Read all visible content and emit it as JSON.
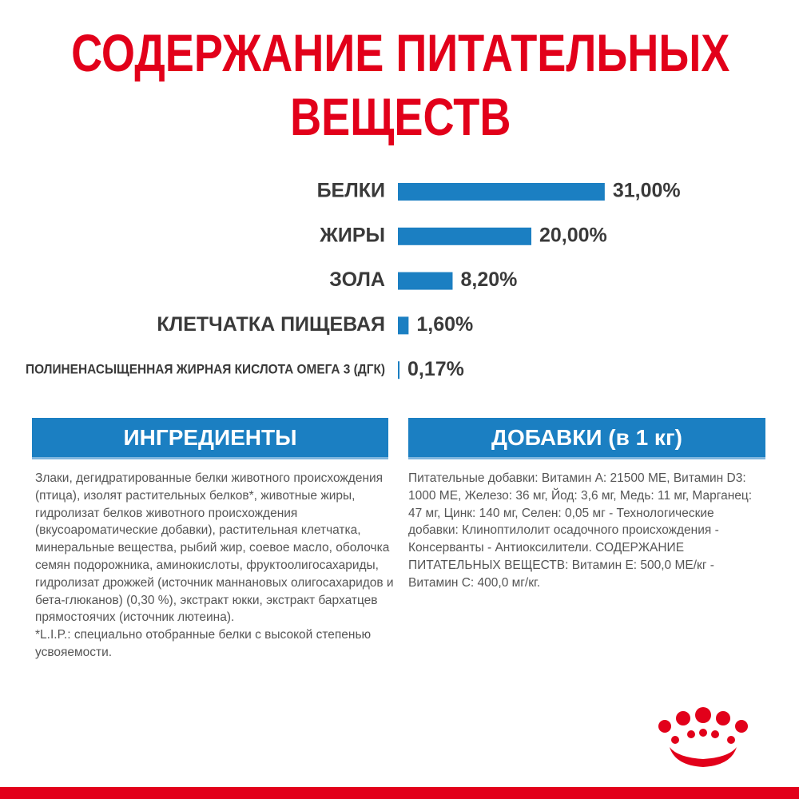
{
  "chart_data": {
    "type": "bar",
    "orientation": "horizontal",
    "title": "СОДЕРЖАНИЕ ПИТАТЕЛЬНЫХ ВЕЩЕСТВ",
    "categories": [
      "БЕЛКИ",
      "ЖИРЫ",
      "ЗОЛА",
      "КЛЕТЧАТКА ПИЩЕВАЯ",
      "ПОЛИНЕНАСЫЩЕННАЯ ЖИРНАЯ КИСЛОТА ОМЕГА 3 (ДГК)"
    ],
    "values": [
      31,
      20,
      8.2,
      1.6,
      0.17
    ],
    "value_labels": [
      "31,00%",
      "20,00%",
      "8,20%",
      "1,60%",
      "0,17%"
    ],
    "color": "#1b7fc2"
  },
  "ingredients": {
    "header": "ИНГРЕДИЕНТЫ",
    "text": "Злаки, дегидратированные белки животного происхождения (птица), изолят растительных белков*, животные жиры, гидролизат белков животного происхождения (вкусоароматические добавки), растительная клетчатка, минеральные вещества, рыбий жир, соевое масло, оболочка семян подорожника, аминокислоты, фруктоолигосахариды, гидролизат дрожжей (источник маннановых олигосахаридов и бета-глюканов) (0,30 %), экстракт юкки, экстракт бархатцев прямостоячих (источник лютеина).",
    "note": "*L.I.P.: специально отобранные белки с высокой степенью усвояемости."
  },
  "additives": {
    "header": "ДОБАВКИ (в 1 кг)",
    "text": "Питательные добавки: Витамин A: 21500 МЕ, Витамин D3: 1000 МЕ, Железо: 36 мг, Йод: 3,6 мг, Медь: 11 мг, Марганец: 47 мг, Цинк: 140 мг, Селен: 0,05 мг - Технологические добавки: Клиноптилолит осадочного происхождения - Консерванты - Антиоксилители. СОДЕРЖАНИЕ ПИТАТЕЛЬНЫХ ВЕЩЕСТВ: Витамин E: 500,0 МЕ/кг - Витамин C: 400,0 мг/кг."
  }
}
